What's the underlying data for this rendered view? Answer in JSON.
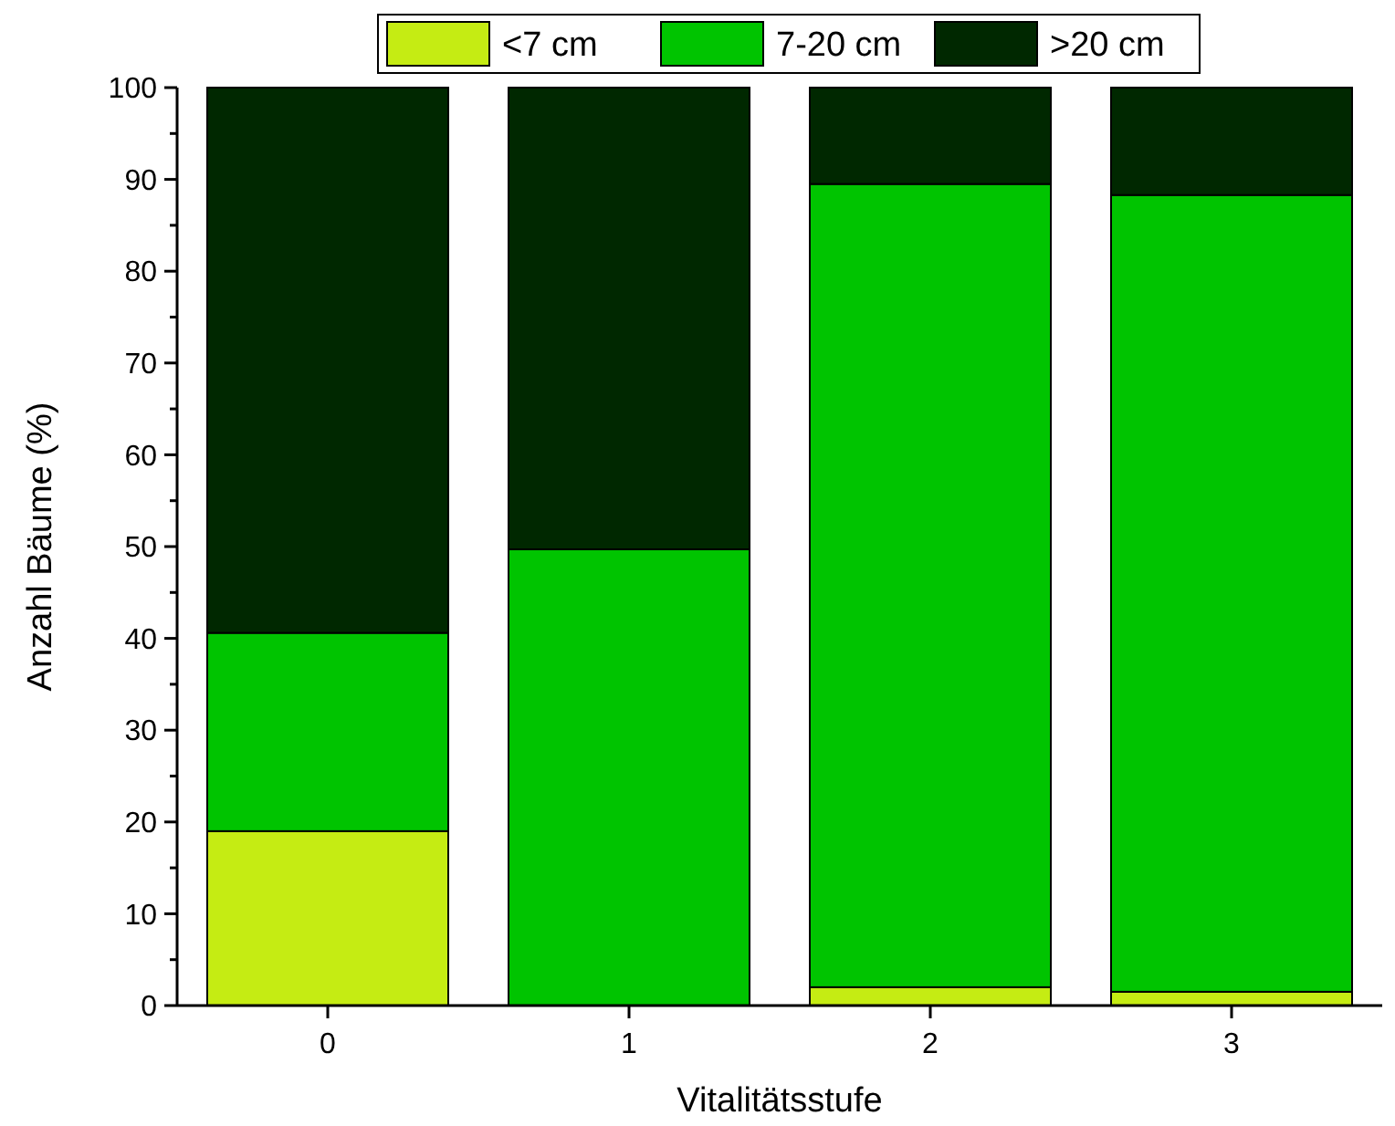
{
  "chart_data": {
    "type": "bar",
    "stacked": true,
    "xlabel": "Vitalitätsstufe",
    "ylabel": "Anzahl Bäume (%)",
    "categories": [
      "0",
      "1",
      "2",
      "3"
    ],
    "series": [
      {
        "name": "<7 cm",
        "color": "#c5ec13",
        "values": [
          19,
          0,
          2,
          1.5
        ]
      },
      {
        "name": "7-20 cm",
        "color": "#00c400",
        "values": [
          21.6,
          49.7,
          87.5,
          86.8
        ]
      },
      {
        "name": ">20 cm",
        "color": "#002800",
        "values": [
          59.4,
          50.3,
          10.5,
          11.7
        ]
      }
    ],
    "ylim": [
      0,
      100
    ],
    "yticks": [
      0,
      {
        "value": 5,
        "label": null
      },
      10,
      {
        "value": 15,
        "label": null
      },
      20,
      {
        "value": 25,
        "label": null
      },
      30,
      {
        "value": 35,
        "label": null
      },
      40,
      {
        "value": 45,
        "label": null
      },
      50,
      {
        "value": 55,
        "label": null
      },
      60,
      {
        "value": 65,
        "label": null
      },
      70,
      {
        "value": 75,
        "label": null
      },
      80,
      {
        "value": 85,
        "label": null
      },
      90,
      {
        "value": 95,
        "label": null
      },
      100
    ],
    "grid": false,
    "legend": "top"
  }
}
